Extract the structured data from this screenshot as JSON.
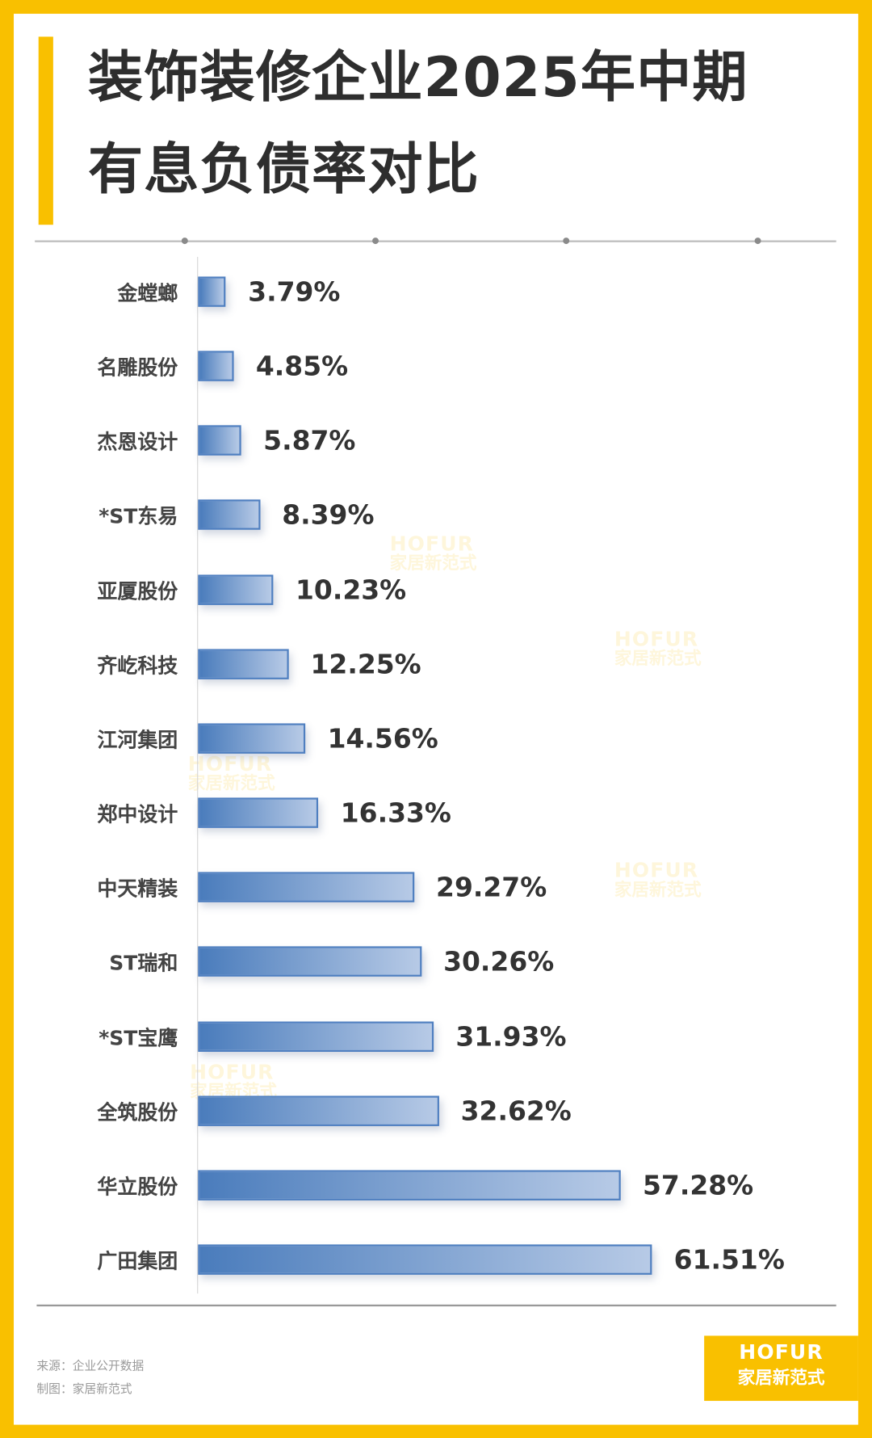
{
  "title_line1": "装饰装修企业2025年中期",
  "title_line2": "有息负债率对比",
  "chart_data": {
    "type": "bar",
    "orientation": "horizontal",
    "title": "装饰装修企业2025年中期有息负债率对比",
    "categories": [
      "金螳螂",
      "名雕股份",
      "杰恩设计",
      "*ST东易",
      "亚厦股份",
      "齐屹科技",
      "江河集团",
      "郑中设计",
      "中天精装",
      "ST瑞和",
      "*ST宝鹰",
      "全筑股份",
      "华立股份",
      "广田集团"
    ],
    "values": [
      3.79,
      4.85,
      5.87,
      8.39,
      10.23,
      12.25,
      14.56,
      16.33,
      29.27,
      30.26,
      31.93,
      32.62,
      57.28,
      61.51
    ],
    "value_labels": [
      "3.79%",
      "4.85%",
      "5.87%",
      "8.39%",
      "10.23%",
      "12.25%",
      "14.56%",
      "16.33%",
      "29.27%",
      "30.26%",
      "31.93%",
      "32.62%",
      "57.28%",
      "61.51%"
    ],
    "unit": "%",
    "grid": false,
    "bar_color": "#4a7cbc"
  },
  "footer": {
    "source": "来源：企业公开数据",
    "credit": "制图：家居新范式"
  },
  "logo": {
    "en": "HOFUR",
    "cn": "家居新范式"
  },
  "watermark": {
    "en": "HOFUR",
    "cn": "家居新范式"
  },
  "colors": {
    "frame": "#F9C000",
    "text": "#333333"
  }
}
